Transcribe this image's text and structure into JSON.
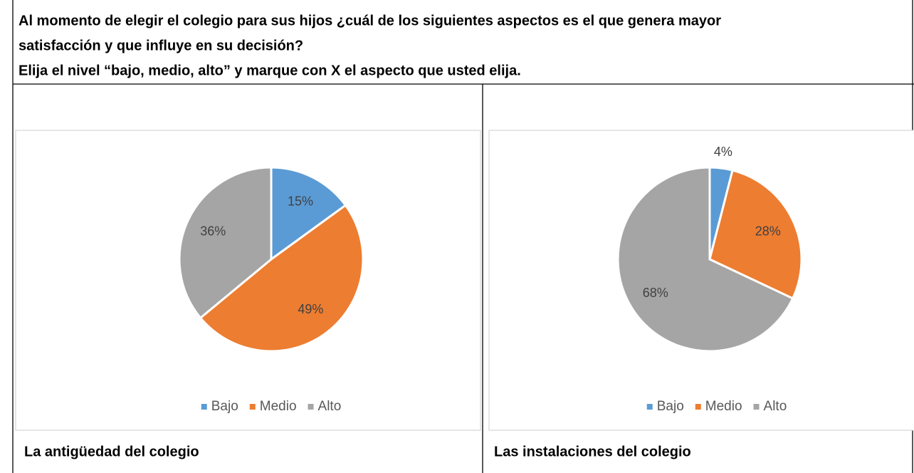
{
  "header": {
    "question_lines": [
      "Al momento de elegir el colegio para sus hijos ¿cuál de los siguientes aspectos es el que genera mayor",
      "satisfacción y que influye en su decisión?"
    ],
    "instruction": "Elija el nivel “bajo, medio, alto” y marque con X el aspecto que usted elija."
  },
  "chart_data": [
    {
      "type": "pie",
      "categories": [
        "Bajo",
        "Medio",
        "Alto"
      ],
      "values": [
        15,
        49,
        36
      ],
      "value_labels": [
        "15%",
        "49%",
        "36%"
      ],
      "colors": [
        "#5b9bd5",
        "#ed7d31",
        "#a5a5a5"
      ],
      "legend": "bottom"
    },
    {
      "type": "pie",
      "categories": [
        "Bajo",
        "Medio",
        "Alto"
      ],
      "values": [
        4,
        28,
        68
      ],
      "value_labels": [
        "4%",
        "28%",
        "68%"
      ],
      "colors": [
        "#5b9bd5",
        "#ed7d31",
        "#a5a5a5"
      ],
      "legend": "bottom"
    }
  ],
  "captions": [
    "La antigüedad del colegio",
    "Las instalaciones del colegio"
  ]
}
